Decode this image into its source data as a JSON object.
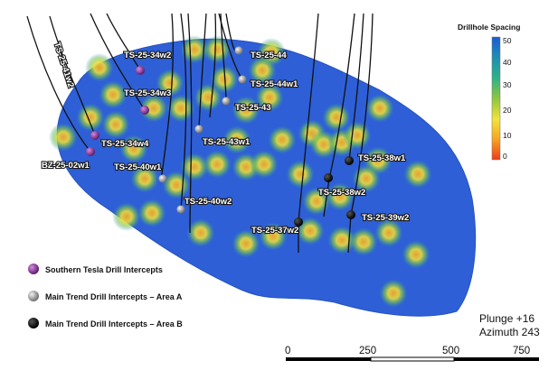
{
  "legend": {
    "title": "Drillhole Spacing",
    "ticks": [
      "50",
      "40",
      "30",
      "20",
      "10",
      "0"
    ],
    "gradient": [
      "#1a5cd6",
      "#1f8fb0",
      "#2eb08a",
      "#8cc63f",
      "#f2e33b",
      "#f6a623",
      "#ee3b1c"
    ]
  },
  "hole_labels": [
    "TS-25-41w2",
    "TS-25-34w2",
    "TS-25-44",
    "TS-25-44w1",
    "TS-25-34w3",
    "TS-25-43",
    "TS-25-34w4",
    "BZ-25-02w1",
    "TS-25-43w1",
    "TS-25-40w1",
    "TS-25-38w1",
    "TS-25-38w2",
    "TS-25-40w2",
    "TS-25-37w2",
    "TS-25-39w2"
  ],
  "key": [
    {
      "label": "Southern Tesla Drill Intercepts",
      "color": "#7b2a8c"
    },
    {
      "label": "Main Trend Drill Intercepts – Area A",
      "color": "#9a9a9a"
    },
    {
      "label": "Main Trend Drill Intercepts – Area B",
      "color": "#000000"
    }
  ],
  "view": {
    "plunge": "Plunge +16",
    "azimuth": "Azimuth 243"
  },
  "scale": {
    "ticks": [
      "0",
      "250",
      "500",
      "750"
    ]
  }
}
